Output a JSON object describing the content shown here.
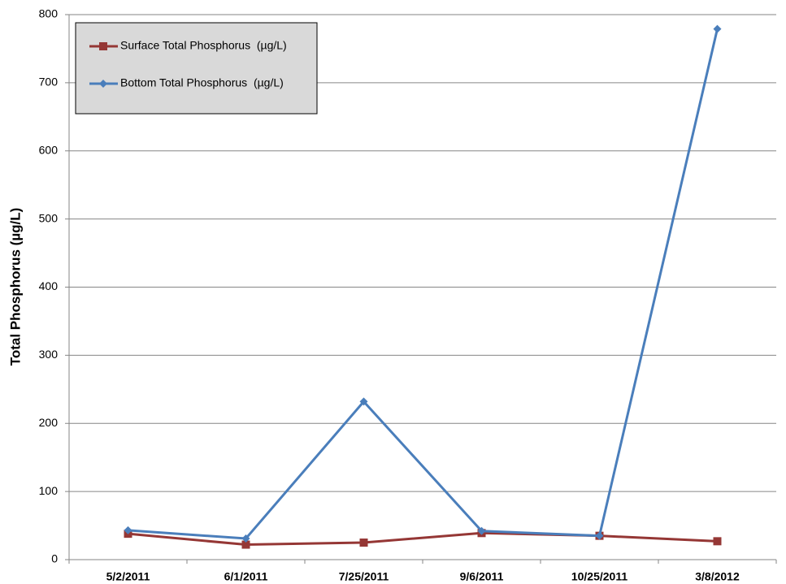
{
  "chart_data": {
    "type": "line",
    "ylabel": "Total Phosphorus (µg/L)",
    "categories": [
      "5/2/2011",
      "6/1/2011",
      "7/25/2011",
      "9/6/2011",
      "10/25/2011",
      "3/8/2012"
    ],
    "series": [
      {
        "name": "Surface Total Phosphorus  (µg/L)",
        "color": "#953735",
        "marker": "square",
        "values": [
          38,
          22,
          25,
          39,
          35,
          27
        ]
      },
      {
        "name": "Bottom Total Phosphorus  (µg/L)",
        "color": "#4a7ebb",
        "marker": "diamond",
        "values": [
          43,
          31,
          232,
          42,
          35,
          779
        ]
      }
    ],
    "ylim": [
      0,
      800
    ],
    "yticks": [
      0,
      100,
      200,
      300,
      400,
      500,
      600,
      700,
      800
    ],
    "grid": true,
    "legend": "upper left"
  }
}
